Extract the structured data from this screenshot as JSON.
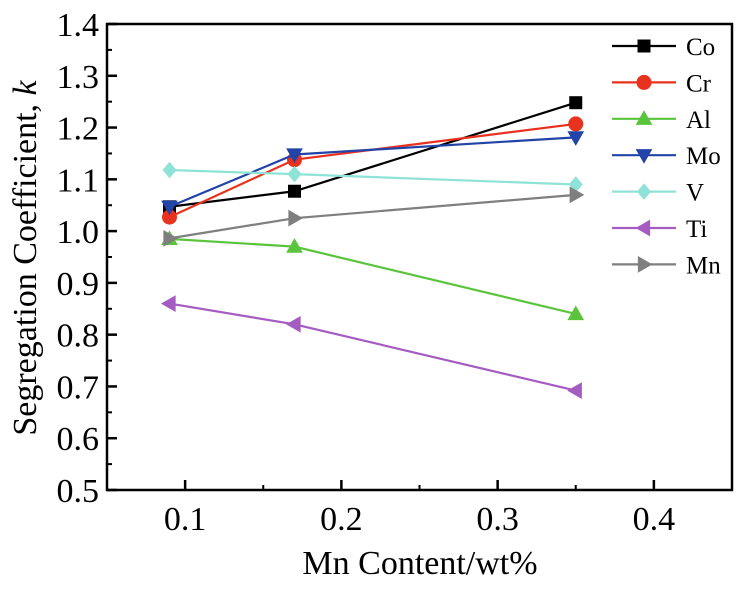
{
  "chart_data": {
    "type": "line",
    "xlabel": "Mn Content/wt%",
    "ylabel_main": "Segregation Coefficient, ",
    "ylabel_italic": "k",
    "xlim": [
      0.05,
      0.45
    ],
    "ylim": [
      0.5,
      1.4
    ],
    "xticks": [
      0.1,
      0.2,
      0.3,
      0.4
    ],
    "xtick_labels": [
      "0.1",
      "0.2",
      "0.3",
      "0.4"
    ],
    "yticks": [
      0.5,
      0.6,
      0.7,
      0.8,
      0.9,
      1.0,
      1.1,
      1.2,
      1.3,
      1.4
    ],
    "ytick_labels": [
      "0.5",
      "0.6",
      "0.7",
      "0.8",
      "0.9",
      "1.0",
      "1.1",
      "1.2",
      "1.3",
      "1.4"
    ],
    "grid": false,
    "legend_position": "top-right",
    "x": [
      0.09,
      0.17,
      0.35
    ],
    "series": [
      {
        "name": "Co",
        "values": [
          1.047,
          1.077,
          1.248
        ],
        "color": "#000000",
        "marker": "square"
      },
      {
        "name": "Cr",
        "values": [
          1.027,
          1.138,
          1.207
        ],
        "color": "#e8321e",
        "marker": "circle"
      },
      {
        "name": "Al",
        "values": [
          0.985,
          0.97,
          0.84
        ],
        "color": "#5ac43c",
        "marker": "triangle-up"
      },
      {
        "name": "Mo",
        "values": [
          1.047,
          1.148,
          1.181
        ],
        "color": "#2243a8",
        "marker": "triangle-down"
      },
      {
        "name": "V",
        "values": [
          1.118,
          1.11,
          1.09
        ],
        "color": "#8ee3d6",
        "marker": "diamond"
      },
      {
        "name": "Ti",
        "values": [
          0.86,
          0.82,
          0.692
        ],
        "color": "#a55cc2",
        "marker": "triangle-left"
      },
      {
        "name": "Mn",
        "values": [
          0.986,
          1.025,
          1.07
        ],
        "color": "#7f7f7f",
        "marker": "triangle-right"
      }
    ]
  }
}
